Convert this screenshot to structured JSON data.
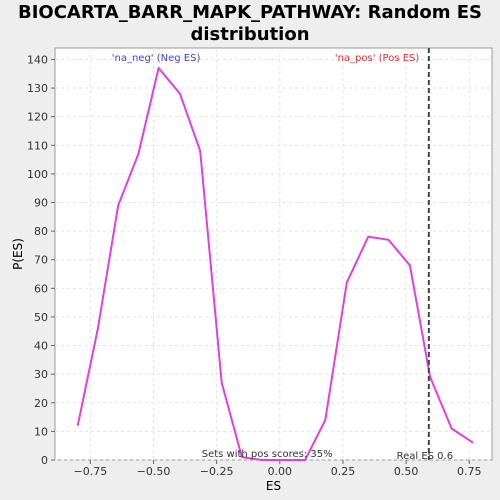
{
  "chart_data": {
    "type": "line",
    "title_lines": [
      "BIOCARTA_BARR_MAPK_PATHWAY: Random ES",
      "distribution"
    ],
    "xlabel": "ES",
    "ylabel": "P(ES)",
    "xlim": [
      -0.89,
      0.84
    ],
    "ylim": [
      0,
      144
    ],
    "x_ticks": [
      -0.75,
      -0.5,
      -0.25,
      0.0,
      0.25,
      0.5,
      0.75
    ],
    "x_tick_labels": [
      "−0.75",
      "−0.50",
      "−0.25",
      "0.00",
      "0.25",
      "0.50",
      "0.75"
    ],
    "y_ticks": [
      0,
      10,
      20,
      30,
      40,
      50,
      60,
      70,
      80,
      90,
      100,
      110,
      120,
      130,
      140
    ],
    "y_tick_labels": [
      "0",
      "10",
      "20",
      "30",
      "40",
      "50",
      "60",
      "70",
      "80",
      "90",
      "100",
      "110",
      "120",
      "130",
      "140"
    ],
    "grid": true,
    "line_color": "#e040e0",
    "series": [
      {
        "x": [
          -0.8,
          -0.72,
          -0.64,
          -0.56,
          -0.48,
          -0.395,
          -0.315,
          -0.23,
          -0.15,
          -0.07,
          0.02,
          0.1,
          0.18,
          0.265,
          0.35,
          0.43,
          0.515,
          0.595,
          0.68,
          0.765
        ],
        "y": [
          12,
          46,
          89,
          107,
          137,
          128,
          108,
          27,
          1,
          0,
          0,
          0,
          14,
          62,
          78,
          77,
          68,
          29,
          11,
          6
        ]
      }
    ],
    "real_es": {
      "x": 0.59,
      "label": "Real ES 0.6",
      "color": "#444444"
    },
    "annotations": [
      {
        "text": "'na_neg' (Neg ES)",
        "color": "#4444cc"
      },
      {
        "text": "'na_pos' (Pos ES)",
        "color": "#dd3333"
      }
    ],
    "footnote": "Sets with pos scores: 35%"
  }
}
